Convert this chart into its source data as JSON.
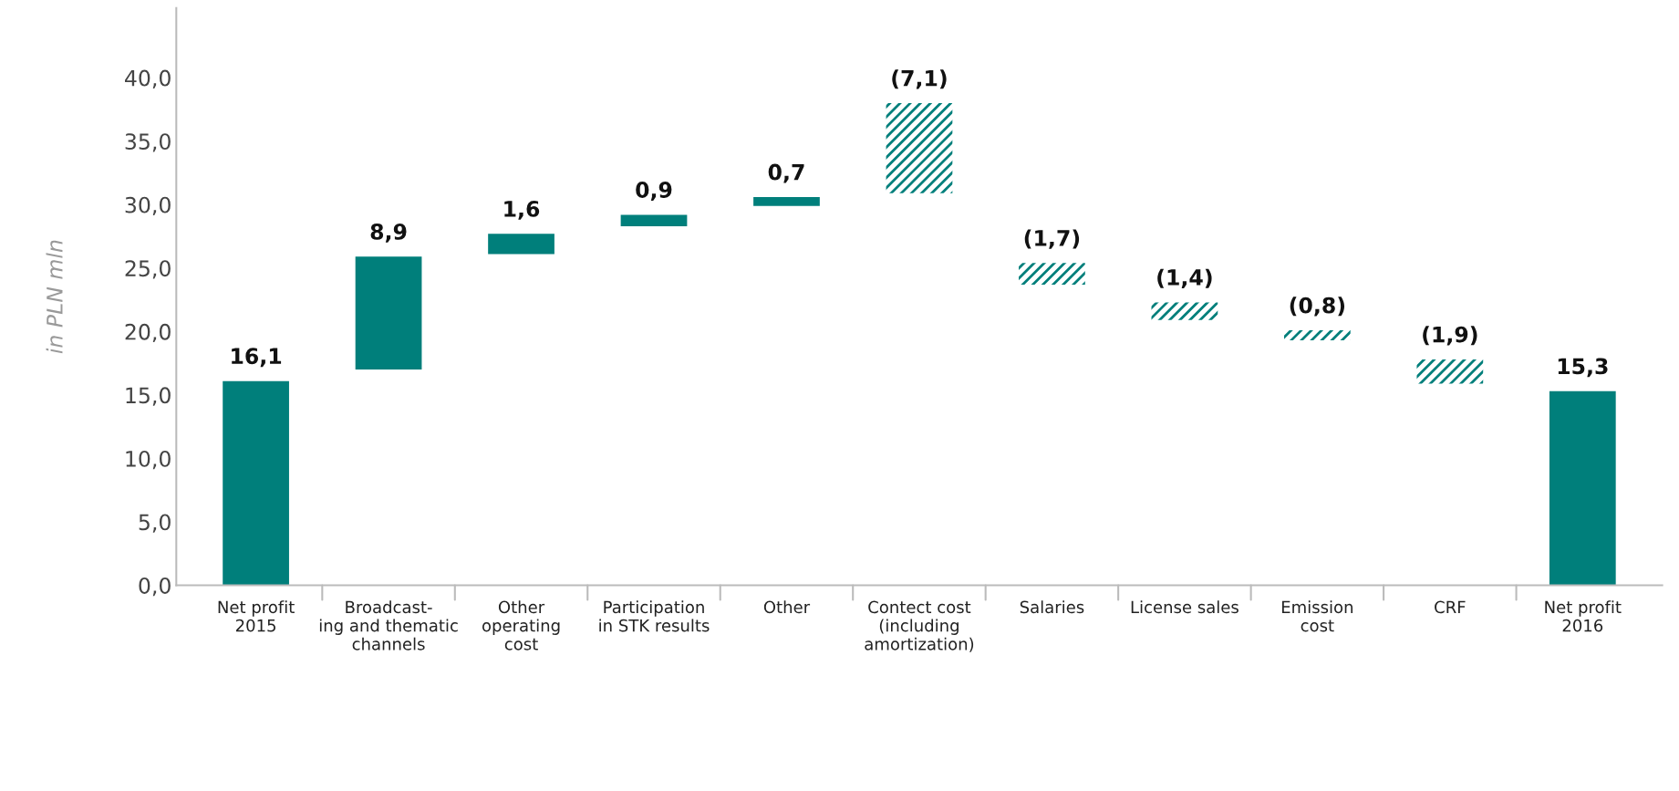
{
  "chart_data": {
    "type": "bar",
    "ylabel": "in PLN mln",
    "categories": [
      "Net profit\n2015",
      "Broadcast-\ning and thematic\nchannels",
      "Other\noperating\ncost",
      "Participation\nin STK results",
      "Other",
      "Contect cost\n(including\namortization)",
      "Salaries",
      "License sales",
      "Emission\ncost",
      "CRF",
      "Net profit\n2016"
    ],
    "values": [
      16.1,
      8.9,
      1.6,
      0.9,
      0.7,
      -7.1,
      -1.7,
      -1.4,
      -0.8,
      -1.9,
      15.3
    ],
    "base": [
      0,
      17.0,
      26.1,
      28.3,
      29.9,
      38.0,
      25.4,
      22.3,
      20.1,
      17.8,
      0
    ],
    "value_labels": [
      "16,1",
      "8,9",
      "1,6",
      "0,9",
      "0,7",
      "(7,1)",
      "(1,7)",
      "(1,4)",
      "(0,8)",
      "(1,9)",
      "15,3"
    ],
    "color": "#007f7b",
    "ylim": [
      0,
      45.5
    ],
    "yticks": [
      {
        "value": 0,
        "label": "0,0"
      },
      {
        "value": 5,
        "label": "5,0"
      },
      {
        "value": 10,
        "label": "10,0"
      },
      {
        "value": 15,
        "label": "15,0"
      },
      {
        "value": 20,
        "label": "20,0"
      },
      {
        "value": 25,
        "label": "25,0"
      },
      {
        "value": 30,
        "label": "30,0"
      },
      {
        "value": 35,
        "label": "35,0"
      },
      {
        "value": 40,
        "label": "40,0"
      }
    ],
    "grid": false
  }
}
